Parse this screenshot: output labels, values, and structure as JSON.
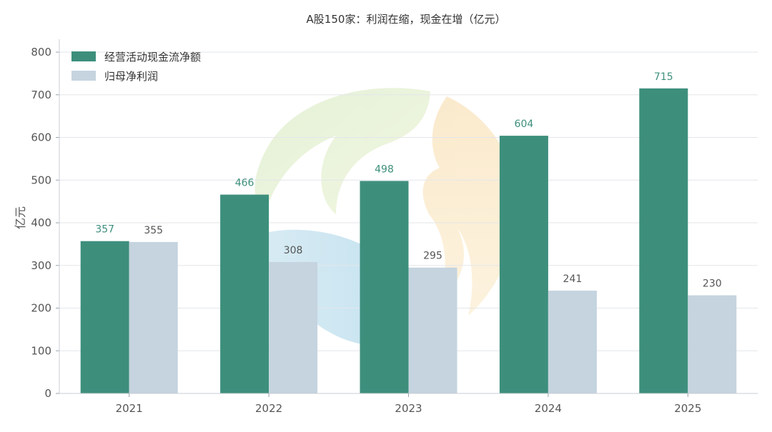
{
  "chart_data": {
    "type": "bar",
    "title": "A股150家：利润在缩，现金在增（亿元）",
    "xlabel": "",
    "ylabel": "亿元",
    "categories": [
      "2021",
      "2022",
      "2023",
      "2024",
      "2025"
    ],
    "series": [
      {
        "name": "经营活动现金流净额",
        "values": [
          357,
          466,
          498,
          604,
          715
        ],
        "color": "#3d8f7c"
      },
      {
        "name": "归母净利润",
        "values": [
          355,
          308,
          295,
          241,
          230
        ],
        "color": "#c5d4df"
      }
    ],
    "ylim": [
      0,
      800
    ],
    "yticks": [
      0,
      100,
      200,
      300,
      400,
      500,
      600,
      700,
      800
    ],
    "grid": true,
    "legend": "top-left",
    "label_colors": [
      "#3d8f7c",
      "#555555"
    ]
  }
}
